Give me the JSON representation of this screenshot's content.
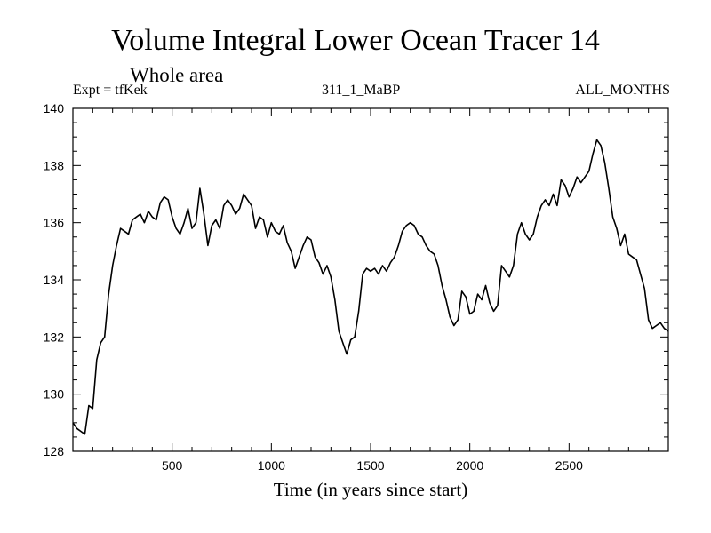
{
  "header": {
    "title": "Volume Integral Lower Ocean Tracer 14",
    "subtitle": "Whole area",
    "left_label": "Expt = tfKek",
    "center_label": "311_1_MaBP",
    "right_label": "ALL_MONTHS"
  },
  "chart_data": {
    "type": "line",
    "title": "Volume Integral Lower Ocean Tracer 14",
    "subtitle": "Whole area",
    "xlabel": "Time (in years since start)",
    "ylabel": "",
    "xlim": [
      0,
      3000
    ],
    "ylim": [
      128,
      140
    ],
    "xticks": [
      500,
      1000,
      1500,
      2000,
      2500
    ],
    "yticks": [
      128,
      130,
      132,
      134,
      136,
      138,
      140
    ],
    "grid": false,
    "legend": "none",
    "series": [
      {
        "color": "#000000",
        "points": [
          [
            0,
            129.0
          ],
          [
            20,
            128.8
          ],
          [
            40,
            128.7
          ],
          [
            60,
            128.6
          ],
          [
            80,
            129.6
          ],
          [
            100,
            129.5
          ],
          [
            120,
            131.2
          ],
          [
            140,
            131.8
          ],
          [
            160,
            132.0
          ],
          [
            180,
            133.5
          ],
          [
            200,
            134.5
          ],
          [
            220,
            135.2
          ],
          [
            240,
            135.8
          ],
          [
            260,
            135.7
          ],
          [
            280,
            135.6
          ],
          [
            300,
            136.1
          ],
          [
            320,
            136.2
          ],
          [
            340,
            136.3
          ],
          [
            360,
            136.0
          ],
          [
            380,
            136.4
          ],
          [
            400,
            136.2
          ],
          [
            420,
            136.1
          ],
          [
            440,
            136.7
          ],
          [
            460,
            136.9
          ],
          [
            480,
            136.8
          ],
          [
            500,
            136.2
          ],
          [
            520,
            135.8
          ],
          [
            540,
            135.6
          ],
          [
            560,
            136.0
          ],
          [
            580,
            136.5
          ],
          [
            600,
            135.8
          ],
          [
            620,
            136.0
          ],
          [
            640,
            137.2
          ],
          [
            660,
            136.3
          ],
          [
            680,
            135.2
          ],
          [
            700,
            135.9
          ],
          [
            720,
            136.1
          ],
          [
            740,
            135.8
          ],
          [
            760,
            136.6
          ],
          [
            780,
            136.8
          ],
          [
            800,
            136.6
          ],
          [
            820,
            136.3
          ],
          [
            840,
            136.5
          ],
          [
            860,
            137.0
          ],
          [
            880,
            136.8
          ],
          [
            900,
            136.6
          ],
          [
            920,
            135.8
          ],
          [
            940,
            136.2
          ],
          [
            960,
            136.1
          ],
          [
            980,
            135.5
          ],
          [
            1000,
            136.0
          ],
          [
            1020,
            135.7
          ],
          [
            1040,
            135.6
          ],
          [
            1060,
            135.9
          ],
          [
            1080,
            135.3
          ],
          [
            1100,
            135.0
          ],
          [
            1120,
            134.4
          ],
          [
            1140,
            134.8
          ],
          [
            1160,
            135.2
          ],
          [
            1180,
            135.5
          ],
          [
            1200,
            135.4
          ],
          [
            1220,
            134.8
          ],
          [
            1240,
            134.6
          ],
          [
            1260,
            134.2
          ],
          [
            1280,
            134.5
          ],
          [
            1300,
            134.1
          ],
          [
            1320,
            133.3
          ],
          [
            1340,
            132.2
          ],
          [
            1360,
            131.8
          ],
          [
            1380,
            131.4
          ],
          [
            1400,
            131.9
          ],
          [
            1420,
            132.0
          ],
          [
            1440,
            132.9
          ],
          [
            1460,
            134.2
          ],
          [
            1480,
            134.4
          ],
          [
            1500,
            134.3
          ],
          [
            1520,
            134.4
          ],
          [
            1540,
            134.2
          ],
          [
            1560,
            134.5
          ],
          [
            1580,
            134.3
          ],
          [
            1600,
            134.6
          ],
          [
            1620,
            134.8
          ],
          [
            1640,
            135.2
          ],
          [
            1660,
            135.7
          ],
          [
            1680,
            135.9
          ],
          [
            1700,
            136.0
          ],
          [
            1720,
            135.9
          ],
          [
            1740,
            135.6
          ],
          [
            1760,
            135.5
          ],
          [
            1780,
            135.2
          ],
          [
            1800,
            135.0
          ],
          [
            1820,
            134.9
          ],
          [
            1840,
            134.5
          ],
          [
            1860,
            133.8
          ],
          [
            1880,
            133.3
          ],
          [
            1900,
            132.7
          ],
          [
            1920,
            132.4
          ],
          [
            1940,
            132.6
          ],
          [
            1960,
            133.6
          ],
          [
            1980,
            133.4
          ],
          [
            2000,
            132.8
          ],
          [
            2020,
            132.9
          ],
          [
            2040,
            133.5
          ],
          [
            2060,
            133.3
          ],
          [
            2080,
            133.8
          ],
          [
            2100,
            133.2
          ],
          [
            2120,
            132.9
          ],
          [
            2140,
            133.1
          ],
          [
            2160,
            134.5
          ],
          [
            2180,
            134.3
          ],
          [
            2200,
            134.1
          ],
          [
            2220,
            134.5
          ],
          [
            2240,
            135.6
          ],
          [
            2260,
            136.0
          ],
          [
            2280,
            135.6
          ],
          [
            2300,
            135.4
          ],
          [
            2320,
            135.6
          ],
          [
            2340,
            136.2
          ],
          [
            2360,
            136.6
          ],
          [
            2380,
            136.8
          ],
          [
            2400,
            136.6
          ],
          [
            2420,
            137.0
          ],
          [
            2440,
            136.6
          ],
          [
            2460,
            137.5
          ],
          [
            2480,
            137.3
          ],
          [
            2500,
            136.9
          ],
          [
            2520,
            137.2
          ],
          [
            2540,
            137.6
          ],
          [
            2560,
            137.4
          ],
          [
            2580,
            137.6
          ],
          [
            2600,
            137.8
          ],
          [
            2620,
            138.4
          ],
          [
            2640,
            138.9
          ],
          [
            2660,
            138.7
          ],
          [
            2680,
            138.1
          ],
          [
            2700,
            137.2
          ],
          [
            2720,
            136.2
          ],
          [
            2740,
            135.8
          ],
          [
            2760,
            135.2
          ],
          [
            2780,
            135.6
          ],
          [
            2800,
            134.9
          ],
          [
            2820,
            134.8
          ],
          [
            2840,
            134.7
          ],
          [
            2860,
            134.2
          ],
          [
            2880,
            133.7
          ],
          [
            2900,
            132.6
          ],
          [
            2920,
            132.3
          ],
          [
            2940,
            132.4
          ],
          [
            2960,
            132.5
          ],
          [
            2980,
            132.3
          ],
          [
            3000,
            132.2
          ]
        ]
      }
    ]
  }
}
